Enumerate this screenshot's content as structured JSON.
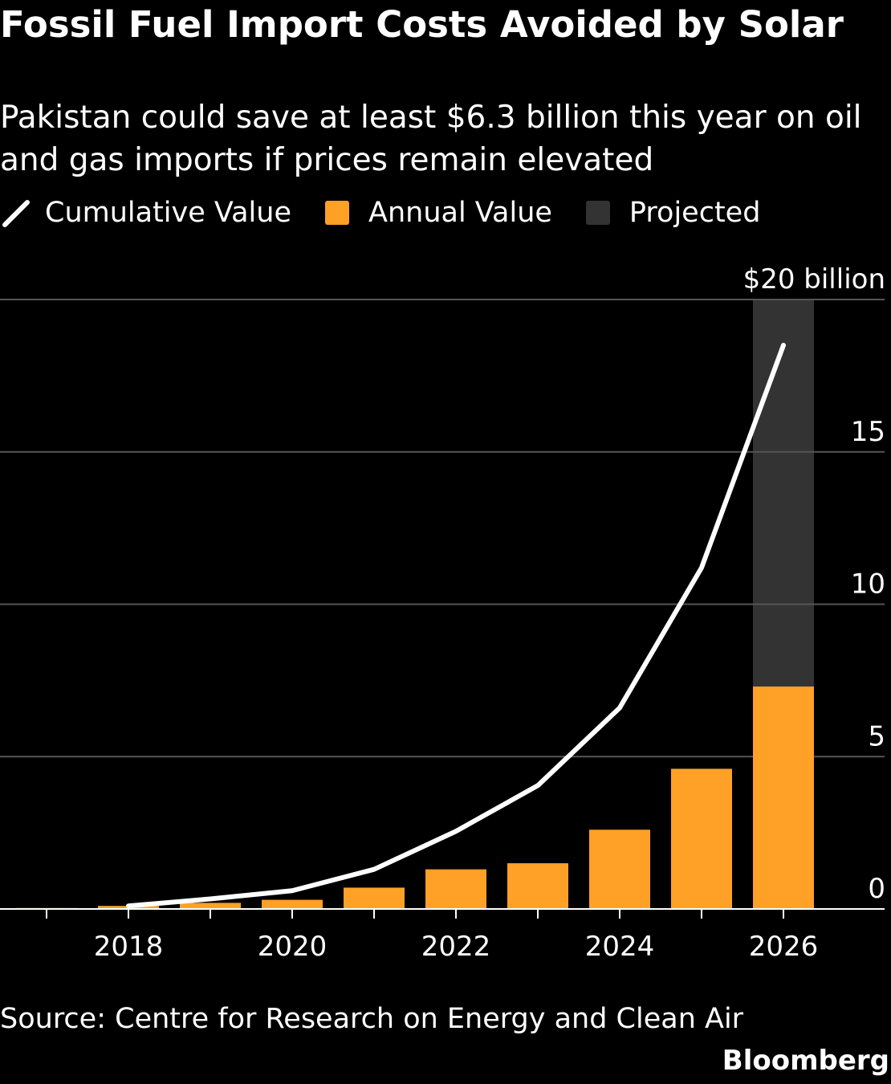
{
  "title": "Fossil Fuel Import Costs Avoided by Solar",
  "subtitle": "Pakistan could save at least $6.3 billion this year on oil and gas imports if prices remain elevated",
  "legend": {
    "line_label": "Cumulative Value",
    "bar_label": "Annual Value",
    "projected_label": "Projected"
  },
  "colors": {
    "background": "#000000",
    "line": "#ffffff",
    "bar": "#ffa027",
    "projected": "#333333",
    "grid": "#555555"
  },
  "source": "Source: Centre for Research on Energy and Clean Air",
  "brand": "Bloomberg",
  "chart_data": {
    "type": "bar",
    "categories": [
      2017,
      2018,
      2019,
      2020,
      2021,
      2022,
      2023,
      2024,
      2025,
      2026
    ],
    "series": [
      {
        "name": "Annual Value",
        "type": "bar",
        "values": [
          0.03,
          0.1,
          0.2,
          0.3,
          0.7,
          1.3,
          1.5,
          2.6,
          4.6,
          7.3
        ]
      },
      {
        "name": "Cumulative Value",
        "type": "line",
        "x": [
          2018,
          2019,
          2020,
          2021,
          2022,
          2023,
          2024,
          2025,
          2026
        ],
        "values": [
          0.1,
          0.33,
          0.6,
          1.3,
          2.55,
          4.05,
          6.6,
          11.2,
          18.5
        ]
      }
    ],
    "projected": {
      "label": "Projected",
      "category": 2026
    },
    "y_tick_labels": [
      "0",
      "5",
      "10",
      "15",
      "$20 billion"
    ],
    "y_ticks": [
      0,
      5,
      10,
      15,
      20
    ],
    "x_tick_labels": [
      "2018",
      "2020",
      "2022",
      "2024",
      "2026"
    ],
    "x_ticks": [
      2018,
      2020,
      2022,
      2024,
      2026
    ],
    "ylim": [
      0,
      20
    ],
    "xlim": [
      2016.5,
      2027.2
    ],
    "y_axis_side": "right",
    "grid": true,
    "legend_position": "top-left"
  }
}
